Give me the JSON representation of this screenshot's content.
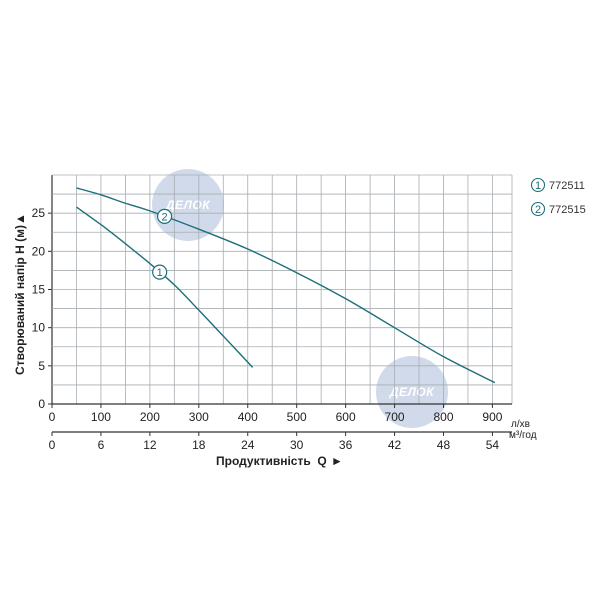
{
  "chart_data": {
    "type": "line",
    "xlabel": "Продуктивність  Q",
    "ylabel": "Створюваний напір H (м)",
    "x_unit_primary": "л/хв",
    "x_unit_secondary": "м³/год",
    "x_ticks_primary": [
      "0",
      "100",
      "200",
      "300",
      "400",
      "500",
      "600",
      "700",
      "800",
      "900"
    ],
    "x_ticks_secondary": [
      "0",
      "6",
      "12",
      "18",
      "24",
      "30",
      "36",
      "42",
      "48",
      "54"
    ],
    "y_ticks": [
      "0",
      "5",
      "10",
      "15",
      "20",
      "25"
    ],
    "xlim": [
      0,
      940
    ],
    "ylim": [
      0,
      30
    ],
    "grid": true,
    "line_color": "#1c6f7a",
    "series": [
      {
        "name": "772511",
        "marker_label": "1",
        "x": [
          50,
          100,
          150,
          200,
          250,
          300,
          350,
          410
        ],
        "y": [
          25.8,
          23.5,
          21.0,
          18.4,
          15.6,
          12.3,
          8.9,
          4.8
        ]
      },
      {
        "name": "772515",
        "marker_label": "2",
        "x": [
          50,
          100,
          150,
          200,
          300,
          400,
          500,
          600,
          700,
          800,
          905
        ],
        "y": [
          28.3,
          27.4,
          26.3,
          25.3,
          22.9,
          20.3,
          17.2,
          13.8,
          10.0,
          6.2,
          2.8
        ]
      }
    ],
    "legend": [
      {
        "marker": "1",
        "label": "772511"
      },
      {
        "marker": "2",
        "label": "772515"
      }
    ],
    "legend_position": "right"
  },
  "watermark": {
    "text": "ДЕЛОК",
    "color": "#c8d4e6"
  }
}
